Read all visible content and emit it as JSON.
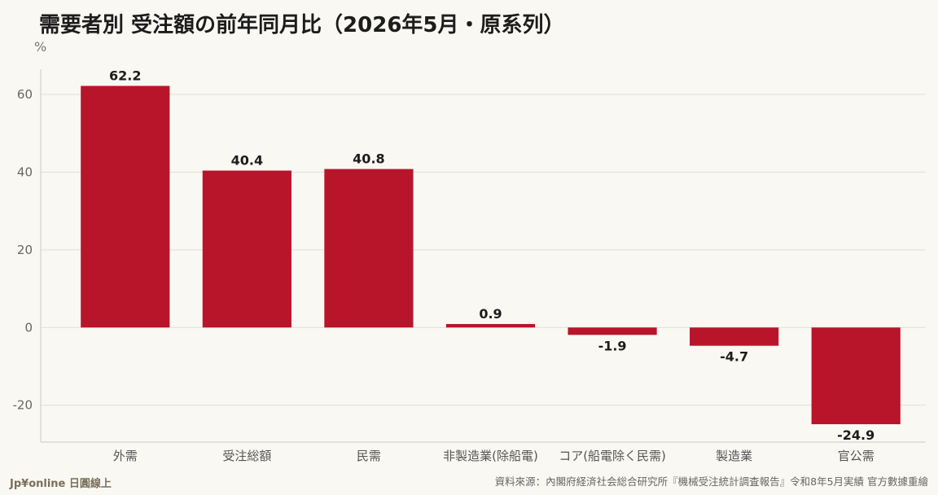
{
  "title": "需要者別 受注額の前年同月比（2026年5月・原系列）",
  "unit": "%",
  "footer": {
    "brand": "Jp¥online 日圓線上",
    "source": "資料來源：內閣府経済社会総合研究所『機械受注統計調査報告』令和8年5月実績 官方數據重繪"
  },
  "colors": {
    "bar": "#b8152b",
    "grid": "#e2ded5",
    "axis": "#cfcac0",
    "background": "#faf8f3"
  },
  "chart_data": {
    "type": "bar",
    "categories": [
      "外需",
      "受注総額",
      "民需",
      "非製造業(除船電)",
      "コア(船電除く民需)",
      "製造業",
      "官公需"
    ],
    "values": [
      62.2,
      40.4,
      40.8,
      0.9,
      -1.9,
      -4.7,
      -24.9
    ],
    "value_labels": [
      "62.2",
      "40.4",
      "40.8",
      "0.9",
      "-1.9",
      "-4.7",
      "-24.9"
    ],
    "ylabel": "%",
    "ylim": [
      -29.5,
      66.5
    ],
    "yticks": [
      60,
      40,
      20,
      0,
      -20
    ],
    "ytick_labels": [
      "60",
      "40",
      "20",
      "0",
      "-20"
    ],
    "grid": true,
    "legend": "none"
  }
}
